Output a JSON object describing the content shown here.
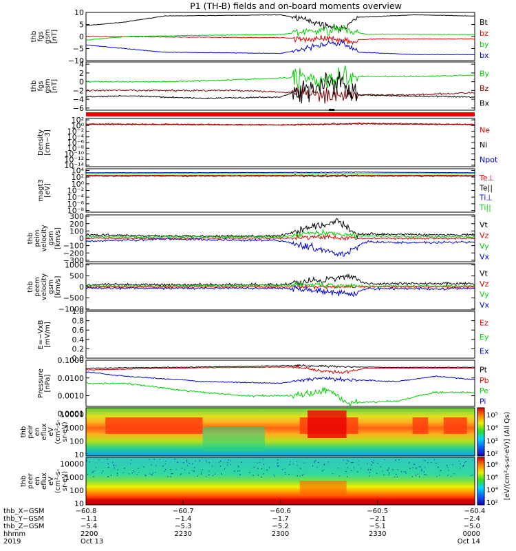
{
  "title": "P1 (TH-B) fields and on-board moments overview",
  "colors": {
    "black": "#000000",
    "red": "#e00000",
    "green": "#00d000",
    "blue": "#0000d0",
    "darkred": "#800000"
  },
  "panels": [
    {
      "id": "fgs",
      "ylabel": [
        "thb",
        "fgs",
        "gsm",
        "[nT]"
      ],
      "ticks": [
        {
          "v": 10,
          "t": "10"
        },
        {
          "v": 5,
          "t": "5"
        },
        {
          "v": 0,
          "t": "0"
        },
        {
          "v": -5,
          "t": "−5"
        },
        {
          "v": -10,
          "t": "−10"
        }
      ],
      "legend": [
        {
          "t": "Bt",
          "c": "black"
        },
        {
          "t": "bz",
          "c": "red"
        },
        {
          "t": "by",
          "c": "green"
        },
        {
          "t": "bx",
          "c": "blue"
        }
      ]
    },
    {
      "id": "fgs2",
      "ylabel": [
        "thb",
        "fgs",
        "gsm",
        "[nT]"
      ],
      "ticks": [
        {
          "v": 4,
          "t": "4"
        },
        {
          "v": 2,
          "t": "2"
        },
        {
          "v": 0,
          "t": "0"
        },
        {
          "v": -2,
          "t": "−2"
        },
        {
          "v": -4,
          "t": "−4"
        },
        {
          "v": -6,
          "t": "−6"
        }
      ],
      "legend": [
        {
          "t": "By",
          "c": "green"
        },
        {
          "t": "Bz",
          "c": "darkred"
        },
        {
          "t": "Bx",
          "c": "black"
        }
      ]
    },
    {
      "id": "density",
      "ylabel": [
        "Density",
        "[cm−3]"
      ],
      "ticks": [
        {
          "v": 2,
          "t": "10²"
        },
        {
          "v": 0,
          "t": "10⁰"
        },
        {
          "v": -2,
          "t": "10⁻²"
        },
        {
          "v": -4,
          "t": "10⁻⁴"
        },
        {
          "v": -6,
          "t": "10⁻⁶"
        },
        {
          "v": -8,
          "t": "10⁻⁸"
        },
        {
          "v": -10,
          "t": "10⁻¹⁰"
        },
        {
          "v": -12,
          "t": "10⁻¹²"
        },
        {
          "v": -14,
          "t": "10⁻¹⁴"
        }
      ],
      "legend": [
        {
          "t": "Ne",
          "c": "red"
        },
        {
          "t": "Ni",
          "c": "black"
        },
        {
          "t": "Npot",
          "c": "blue"
        }
      ]
    },
    {
      "id": "temp",
      "ylabel": [
        "magt3",
        "[eV]"
      ],
      "ticks": [
        {
          "v": 4,
          "t": "10⁴"
        },
        {
          "v": 2,
          "t": "10²"
        },
        {
          "v": 0,
          "t": "10⁰"
        },
        {
          "v": -2,
          "t": "10⁻²"
        },
        {
          "v": -4,
          "t": "10⁻⁴"
        },
        {
          "v": -6,
          "t": "10⁻⁶"
        },
        {
          "v": -8,
          "t": "10⁻⁸"
        }
      ],
      "legend": [
        {
          "t": "Te⊥",
          "c": "red"
        },
        {
          "t": "Te||",
          "c": "black"
        },
        {
          "t": "Ti⊥",
          "c": "blue"
        },
        {
          "t": "Ti||",
          "c": "green"
        }
      ]
    },
    {
      "id": "peim",
      "ylabel": [
        "thb",
        "peim",
        "velocity",
        "gsm",
        "[km/s]"
      ],
      "ticks": [
        {
          "v": 300,
          "t": "300"
        },
        {
          "v": 200,
          "t": "200"
        },
        {
          "v": 100,
          "t": "100"
        },
        {
          "v": 0,
          "t": "0"
        },
        {
          "v": -100,
          "t": "−100"
        },
        {
          "v": -200,
          "t": "−200"
        },
        {
          "v": -300,
          "t": "−300"
        }
      ],
      "legend": [
        {
          "t": "Vt",
          "c": "black"
        },
        {
          "t": "Vz",
          "c": "red"
        },
        {
          "t": "Vy",
          "c": "green"
        },
        {
          "t": "Vx",
          "c": "blue"
        }
      ]
    },
    {
      "id": "peem",
      "ylabel": [
        "thb",
        "peem",
        "velocity",
        "gsm",
        "[km/s]"
      ],
      "ticks": [
        {
          "v": 1000,
          "t": "1000"
        },
        {
          "v": 500,
          "t": "500"
        },
        {
          "v": 0,
          "t": "0"
        },
        {
          "v": -500,
          "t": "−500"
        },
        {
          "v": -1000,
          "t": "−1000"
        }
      ],
      "legend": [
        {
          "t": "Vt",
          "c": "black"
        },
        {
          "t": "Vz",
          "c": "red"
        },
        {
          "t": "Vy",
          "c": "green"
        },
        {
          "t": "Vx",
          "c": "blue"
        }
      ]
    },
    {
      "id": "efield",
      "ylabel": [
        "E=−VxB",
        "[mV/m]"
      ],
      "ticks": [
        {
          "v": 1.0,
          "t": "1.0"
        },
        {
          "v": 0.8,
          "t": "0.8"
        },
        {
          "v": 0.6,
          "t": "0.6"
        },
        {
          "v": 0.4,
          "t": "0.4"
        },
        {
          "v": 0.2,
          "t": "0.2"
        },
        {
          "v": 0.0,
          "t": "0.0"
        }
      ],
      "legend": [
        {
          "t": "Ez",
          "c": "red"
        },
        {
          "t": "Ey",
          "c": "green"
        },
        {
          "t": "Ex",
          "c": "blue"
        }
      ]
    },
    {
      "id": "pressure",
      "ylabel": [
        "Pressure",
        "[nPa]"
      ],
      "ticks": [
        {
          "v": -1,
          "t": "0.1000"
        },
        {
          "v": -2,
          "t": "0.0100"
        },
        {
          "v": -3,
          "t": "0.0010"
        },
        {
          "v": -4,
          "t": "0.0001"
        }
      ],
      "legend": [
        {
          "t": "Pt",
          "c": "black"
        },
        {
          "t": "Pb",
          "c": "red"
        },
        {
          "t": "Pe",
          "c": "green"
        },
        {
          "t": "Pi",
          "c": "blue"
        }
      ]
    },
    {
      "id": "peir",
      "ylabel": [
        "thb",
        "peir",
        "en",
        "eflux",
        "eV",
        "(cm²-s-",
        "sr-eV)"
      ],
      "ticks": [
        {
          "v": 4,
          "t": "10000"
        },
        {
          "v": 3,
          "t": "1000"
        },
        {
          "v": 2,
          "t": "100"
        },
        {
          "v": 1,
          "t": "10"
        }
      ],
      "legend": []
    },
    {
      "id": "peer",
      "ylabel": [
        "thb",
        "peer",
        "en",
        "eflux",
        "eV",
        "(cm²-s-",
        "sr-eV)"
      ],
      "ticks": [
        {
          "v": 4,
          "t": "10000"
        },
        {
          "v": 3,
          "t": "1000"
        },
        {
          "v": 2,
          "t": "100"
        },
        {
          "v": 1,
          "t": "10"
        }
      ],
      "legend": []
    }
  ],
  "colorbar": {
    "label": "[eV/(cm²-s-sr-eV)] (All Qs)",
    "top_ticks": [
      "10⁵",
      "10⁴",
      "10³",
      "10²"
    ],
    "bottom_ticks": [
      "10⁸",
      "10⁶",
      "10⁴",
      "10²"
    ]
  },
  "xaxis": {
    "rows": [
      {
        "label": "thb_X−GSM",
        "values": [
          "−60.8",
          "−60.7",
          "−60.6",
          "−60.5",
          "−60.4"
        ]
      },
      {
        "label": "thb_Y−GSM",
        "values": [
          "−1.1",
          "−1.4",
          "−1.7",
          "−2.1",
          "−2.4"
        ]
      },
      {
        "label": "thb_Z−GSM",
        "values": [
          "−5.4",
          "−5.3",
          "−5.2",
          "−5.1",
          "−5.0"
        ]
      },
      {
        "label": "hhmm",
        "values": [
          "2200",
          "2230",
          "2300",
          "2330",
          "0000"
        ]
      },
      {
        "label": "2019",
        "values": [
          "Oct 13",
          "",
          "",
          "",
          "Oct 14"
        ]
      }
    ]
  },
  "chart_data": [
    {
      "type": "line",
      "title": "P1 (TH-B) fields and on-board moments overview",
      "ylabel": "thb fgs gsm [nT]",
      "ylim": [
        -10,
        10
      ],
      "x": [
        "2200",
        "2230",
        "2300",
        "2330",
        "0000"
      ],
      "series": [
        {
          "name": "Bt",
          "values": [
            5,
            8,
            9,
            5,
            9
          ]
        },
        {
          "name": "bz",
          "values": [
            0,
            -1,
            -1,
            -2,
            -1
          ]
        },
        {
          "name": "by",
          "values": [
            -1,
            1,
            1,
            3,
            1
          ]
        },
        {
          "name": "bx",
          "values": [
            -4,
            -6,
            -7,
            -3,
            -8
          ]
        }
      ]
    },
    {
      "type": "line",
      "ylabel": "thb fgs gsm [nT]",
      "ylim": [
        -6,
        4
      ],
      "x": [
        "2200",
        "2230",
        "2300",
        "2330",
        "0000"
      ],
      "series": [
        {
          "name": "By",
          "values": [
            0,
            0.5,
            0.8,
            0,
            1
          ]
        },
        {
          "name": "Bz",
          "values": [
            -2,
            -2,
            -2.5,
            -3,
            -2.5
          ]
        },
        {
          "name": "Bx",
          "values": [
            -3,
            -3.5,
            -4,
            -2,
            -4
          ]
        }
      ]
    },
    {
      "type": "line",
      "ylabel": "Density [cm−3]",
      "ylim": [
        -14,
        2
      ],
      "scale": "log",
      "series": [
        {
          "name": "Ne",
          "values": [
            0.5,
            0.3,
            0.4,
            0.6,
            0.5
          ]
        },
        {
          "name": "Ni",
          "values": [
            0.4,
            0.3,
            0.4,
            0.5,
            0.4
          ]
        }
      ]
    },
    {
      "type": "line",
      "ylabel": "magt3 [eV]",
      "ylim": [
        -8,
        4
      ],
      "scale": "log",
      "series": [
        {
          "name": "Te⊥",
          "values": [
            2.3,
            2.3,
            2.3,
            2.3,
            2.3
          ]
        },
        {
          "name": "Te||",
          "values": [
            2.2,
            2.2,
            2.2,
            2.2,
            2.2
          ]
        },
        {
          "name": "Ti⊥",
          "values": [
            3.1,
            3.1,
            3.2,
            3.1,
            3.1
          ]
        },
        {
          "name": "Ti||",
          "values": [
            2.8,
            2.8,
            2.8,
            2.9,
            2.8
          ]
        }
      ]
    },
    {
      "type": "line",
      "ylabel": "thb peim velocity gsm [km/s]",
      "ylim": [
        -300,
        300
      ],
      "series": [
        {
          "name": "Vt",
          "values": [
            50,
            30,
            30,
            250,
            50
          ]
        },
        {
          "name": "Vz",
          "values": [
            0,
            10,
            10,
            50,
            10
          ]
        },
        {
          "name": "Vy",
          "values": [
            10,
            10,
            20,
            80,
            20
          ]
        },
        {
          "name": "Vx",
          "values": [
            -40,
            -20,
            -20,
            -250,
            -60
          ]
        }
      ]
    },
    {
      "type": "line",
      "ylabel": "thb peem velocity gsm [km/s]",
      "ylim": [
        -1000,
        1000
      ],
      "series": [
        {
          "name": "Vt",
          "values": [
            100,
            100,
            150,
            450,
            150
          ]
        },
        {
          "name": "Vz",
          "values": [
            0,
            0,
            20,
            100,
            0
          ]
        },
        {
          "name": "Vy",
          "values": [
            30,
            20,
            40,
            150,
            20
          ]
        },
        {
          "name": "Vx",
          "values": [
            -50,
            -80,
            -60,
            -300,
            -80
          ]
        }
      ]
    },
    {
      "type": "line",
      "ylabel": "E=−VxB [mV/m]",
      "ylim": [
        0,
        1
      ],
      "series": [
        {
          "name": "Ez",
          "values": []
        },
        {
          "name": "Ey",
          "values": []
        },
        {
          "name": "Ex",
          "values": []
        }
      ]
    },
    {
      "type": "line",
      "ylabel": "Pressure [nPa]",
      "ylim": [
        0.0001,
        0.1
      ],
      "scale": "log",
      "series": [
        {
          "name": "Pt",
          "values": [
            0.04,
            0.045,
            0.05,
            0.04,
            0.045
          ]
        },
        {
          "name": "Pb",
          "values": [
            0.035,
            0.04,
            0.045,
            0.02,
            0.04
          ]
        },
        {
          "name": "Pe",
          "values": [
            0.005,
            0.0015,
            0.001,
            0.0005,
            0.002
          ]
        },
        {
          "name": "Pi",
          "values": [
            0.02,
            0.006,
            0.005,
            0.008,
            0.005
          ]
        }
      ]
    },
    {
      "type": "heatmap",
      "ylabel": "thb peir en eflux",
      "ylim": [
        10,
        10000
      ]
    },
    {
      "type": "heatmap",
      "ylabel": "thb peer en eflux",
      "ylim": [
        10,
        10000
      ]
    }
  ]
}
